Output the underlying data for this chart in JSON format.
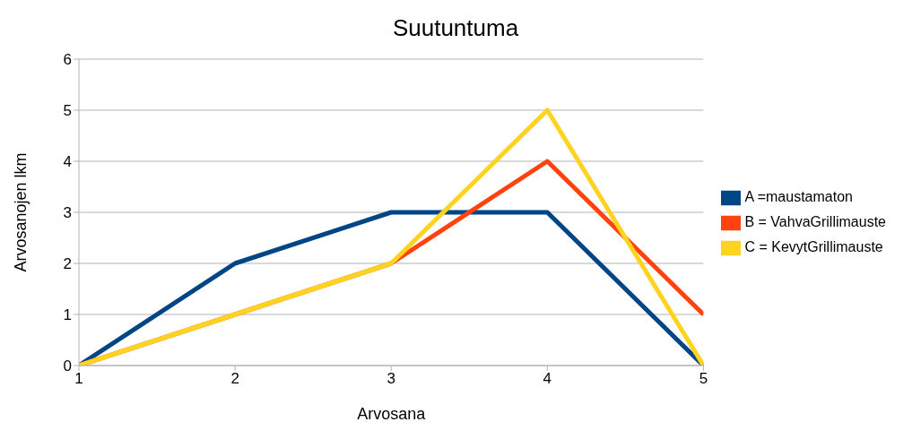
{
  "chart_data": {
    "type": "line",
    "title": "Suutuntuma",
    "xlabel": "Arvosana",
    "ylabel": "Arvosanojen lkm",
    "x": [
      1,
      2,
      3,
      4,
      5
    ],
    "series": [
      {
        "name": "A =maustamaton",
        "color": "#004586",
        "values": [
          0,
          2,
          3,
          3,
          0
        ]
      },
      {
        "name": "B = VahvaGrillimauste",
        "color": "#ff420e",
        "values": [
          0,
          1,
          2,
          4,
          1
        ]
      },
      {
        "name": "C = KevytGrillimauste",
        "color": "#ffd320",
        "values": [
          0,
          1,
          2,
          5,
          0
        ]
      }
    ],
    "xlim": [
      1,
      5
    ],
    "xticks": [
      1,
      2,
      3,
      4,
      5
    ],
    "ylim": [
      0,
      6
    ],
    "yticks": [
      0,
      1,
      2,
      3,
      4,
      5,
      6
    ],
    "grid": "y",
    "legend": "right",
    "marker": "none",
    "line_style": "solid"
  }
}
